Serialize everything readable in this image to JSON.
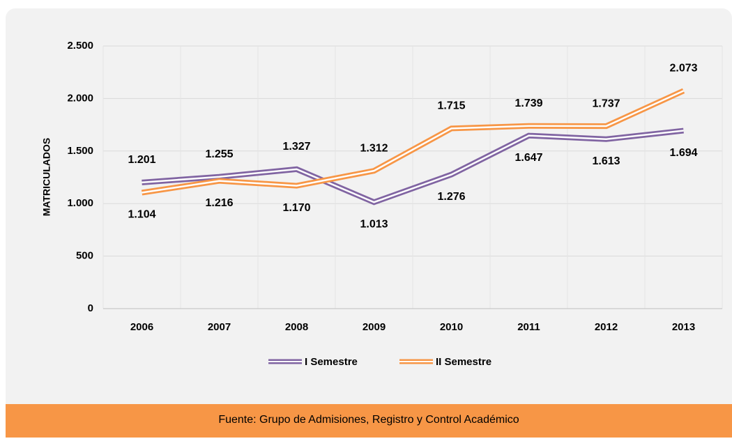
{
  "chart_data": {
    "type": "line",
    "y_label": "MATRICULADOS",
    "categories": [
      "2006",
      "2007",
      "2008",
      "2009",
      "2010",
      "2011",
      "2012",
      "2013"
    ],
    "series": [
      {
        "name": "I Semestre",
        "color": "#8064a2",
        "values": [
          1201,
          1255,
          1327,
          1013,
          1276,
          1647,
          1613,
          1694
        ],
        "value_labels": [
          "1.201",
          "1.255",
          "1.327",
          "1.013",
          "1.276",
          "1.647",
          "1.613",
          "1.694"
        ]
      },
      {
        "name": "II Semestre",
        "color": "#f79646",
        "values": [
          1104,
          1216,
          1170,
          1312,
          1715,
          1739,
          1737,
          2073
        ],
        "value_labels": [
          "1.104",
          "1.216",
          "1.170",
          "1.312",
          "1.715",
          "1.739",
          "1.737",
          "2.073"
        ]
      }
    ],
    "ylim": [
      0,
      2500
    ],
    "yticks": [
      {
        "value": 0,
        "label": "0"
      },
      {
        "value": 500,
        "label": "500"
      },
      {
        "value": 1000,
        "label": "1.000"
      },
      {
        "value": 1500,
        "label": "1.500"
      },
      {
        "value": 2000,
        "label": "2.000"
      },
      {
        "value": 2500,
        "label": "2.500"
      }
    ],
    "grid": true,
    "legend": "bottom",
    "source": "Fuente: Grupo de Admisiones, Registro y Control Académico"
  }
}
